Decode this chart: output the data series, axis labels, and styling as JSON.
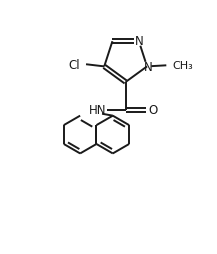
{
  "background_color": "#ffffff",
  "line_color": "#1a1a1a",
  "line_width": 1.4,
  "font_size": 8.5,
  "figsize": [
    2.17,
    2.55
  ],
  "dpi": 100,
  "xlim": [
    0,
    10
  ],
  "ylim": [
    0,
    11.75
  ]
}
